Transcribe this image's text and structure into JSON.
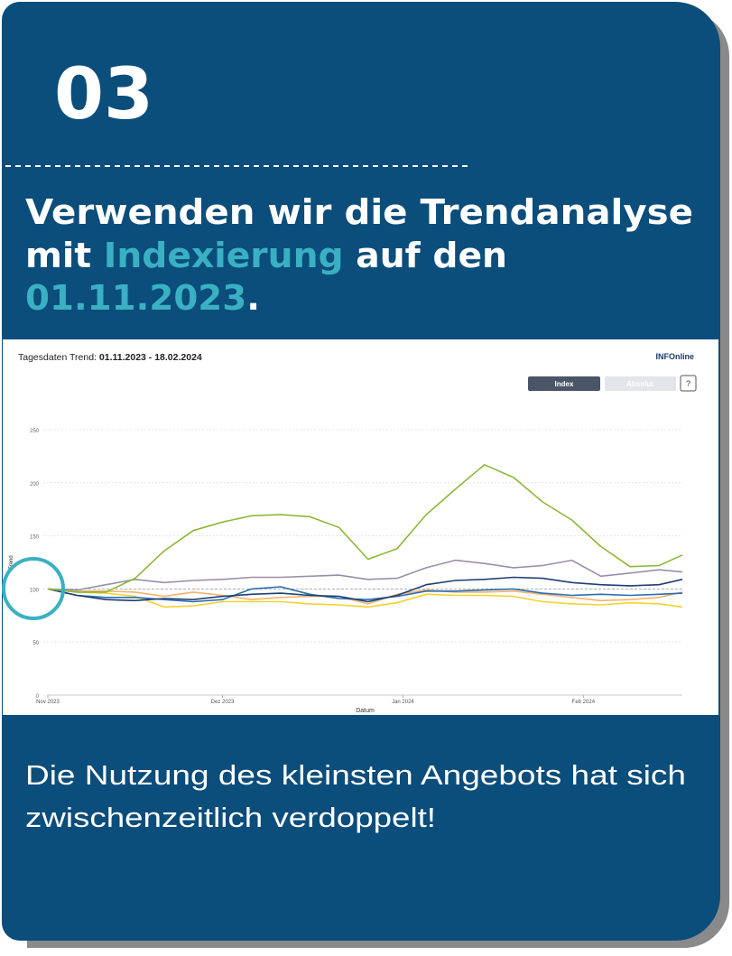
{
  "header": {
    "number": "03",
    "title_lines": [
      [
        "Verwenden wir die Trendanalyse"
      ],
      [
        "mit",
        "Indexierung",
        "auf den"
      ],
      [
        "01.11.2023",
        "."
      ]
    ]
  },
  "chart_data": {
    "type": "line",
    "title_label": "Tagesdaten Trend:",
    "title_range": "01.11.2023 - 18.02.2024",
    "logo": "INFOnline",
    "buttons": [
      "Index",
      "Absolut",
      "?"
    ],
    "x_label": "Datum",
    "y_label": "Trend",
    "xlim": [
      0,
      109
    ],
    "xticks": [
      {
        "value": 0,
        "label": "Nov 2023"
      },
      {
        "value": 30,
        "label": "Dez 2023"
      },
      {
        "value": 61,
        "label": "Jan 2024"
      },
      {
        "value": 92,
        "label": "Feb 2024"
      }
    ],
    "ylim": [
      0,
      250
    ],
    "yticks": [
      0,
      50,
      100,
      150,
      200,
      250
    ],
    "grid": true,
    "reference_line": 100,
    "x": [
      0,
      5,
      10,
      15,
      20,
      25,
      30,
      35,
      40,
      45,
      50,
      55,
      60,
      65,
      70,
      75,
      80,
      85,
      90,
      95,
      100,
      105,
      109
    ],
    "series": [
      {
        "color": "#f5d130",
        "values": [
          100,
          97,
          96,
          93,
          83,
          84,
          88,
          88,
          88,
          86,
          85,
          83,
          87,
          95,
          94,
          94,
          93,
          88,
          86,
          85,
          87,
          86,
          83
        ]
      },
      {
        "color": "#f4b36b",
        "values": [
          100,
          98,
          98,
          97,
          93,
          97,
          94,
          90,
          92,
          93,
          93,
          86,
          95,
          99,
          97,
          97,
          98,
          95,
          92,
          89,
          90,
          92,
          97
        ]
      },
      {
        "color": "#2a6db0",
        "values": [
          100,
          94,
          92,
          92,
          90,
          88,
          90,
          100,
          102,
          95,
          91,
          90,
          93,
          98,
          98,
          99,
          100,
          96,
          94,
          95,
          94,
          95,
          96
        ]
      },
      {
        "color": "#1f3f73",
        "values": [
          100,
          94,
          90,
          89,
          91,
          90,
          93,
          95,
          96,
          94,
          93,
          88,
          94,
          104,
          108,
          109,
          111,
          110,
          106,
          104,
          103,
          104,
          109
        ]
      },
      {
        "color": "#9a8fa8",
        "values": [
          100,
          99,
          104,
          109,
          106,
          108,
          109,
          111,
          111,
          112,
          113,
          109,
          110,
          120,
          127,
          124,
          120,
          122,
          127,
          112,
          115,
          118,
          116
        ]
      },
      {
        "color": "#8db83a",
        "values": [
          100,
          97,
          97,
          110,
          136,
          155,
          163,
          169,
          170,
          168,
          158,
          128,
          138,
          170,
          194,
          217,
          205,
          182,
          165,
          140,
          121,
          122,
          132
        ]
      }
    ]
  },
  "footer": {
    "lines": [
      "Die Nutzung des kleinsten Angebots hat sich",
      "zwischenzeitlich verdoppelt!"
    ]
  }
}
